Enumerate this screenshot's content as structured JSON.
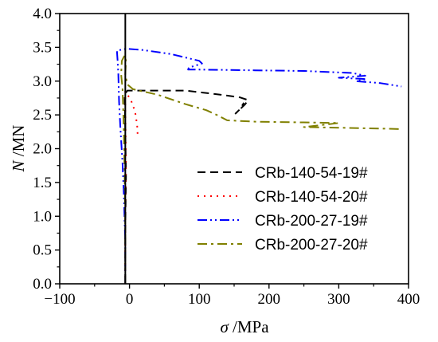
{
  "chart_data": {
    "type": "line",
    "title": "",
    "xlabel_symbol": "σ",
    "xlabel_unit": " /MPa",
    "ylabel_symbol": "N",
    "ylabel_unit": " /MN",
    "xlim": [
      -100,
      400
    ],
    "ylim": [
      0,
      4
    ],
    "x_ticks": [
      -100,
      0,
      100,
      200,
      300,
      400
    ],
    "x_tick_labels": [
      "−100",
      "0",
      "100",
      "200",
      "300",
      "400"
    ],
    "y_ticks": [
      0,
      0.5,
      1.0,
      1.5,
      2.0,
      2.5,
      3.0,
      3.5,
      4.0
    ],
    "y_tick_labels": [
      "0.0",
      "0.5",
      "1.0",
      "1.5",
      "2.0",
      "2.5",
      "3.0",
      "3.5",
      "4.0"
    ],
    "grid": false,
    "legend_position": "bottom-right",
    "zero_line_x": -6,
    "series": [
      {
        "name": "CRb-140-54-19#",
        "color": "#000000",
        "dash": "10,6",
        "points": [
          [
            -6,
            0
          ],
          [
            -6,
            0.8
          ],
          [
            -5,
            1.6
          ],
          [
            -6,
            2.3
          ],
          [
            -7,
            2.8
          ],
          [
            -3,
            2.86
          ],
          [
            30,
            2.86
          ],
          [
            80,
            2.86
          ],
          [
            130,
            2.8
          ],
          [
            158,
            2.76
          ],
          [
            170,
            2.72
          ],
          [
            166,
            2.66
          ],
          [
            160,
            2.6
          ],
          [
            152,
            2.52
          ],
          [
            158,
            2.58
          ],
          [
            164,
            2.68
          ]
        ]
      },
      {
        "name": "CRb-140-54-20#",
        "color": "#ff0000",
        "dash": "2,6",
        "points": [
          [
            -6,
            0
          ],
          [
            -6,
            1.0
          ],
          [
            -5,
            1.8
          ],
          [
            -6,
            2.6
          ],
          [
            -6,
            2.85
          ],
          [
            2,
            2.72
          ],
          [
            8,
            2.55
          ],
          [
            11,
            2.35
          ],
          [
            12,
            2.15
          ]
        ]
      },
      {
        "name": "CRb-200-27-19#",
        "color": "#0000ff",
        "dash": "12,4,2,4,2,4",
        "points": [
          [
            -6,
            0
          ],
          [
            -6,
            0.6
          ],
          [
            -8,
            1.3
          ],
          [
            -10,
            1.8
          ],
          [
            -13,
            2.3
          ],
          [
            -15,
            2.7
          ],
          [
            -16,
            3.1
          ],
          [
            -17,
            3.3
          ],
          [
            -18,
            3.45
          ],
          [
            -5,
            3.48
          ],
          [
            20,
            3.46
          ],
          [
            60,
            3.4
          ],
          [
            100,
            3.3
          ],
          [
            104,
            3.26
          ],
          [
            85,
            3.2
          ],
          [
            84,
            3.17
          ],
          [
            100,
            3.17
          ],
          [
            180,
            3.16
          ],
          [
            250,
            3.15
          ],
          [
            320,
            3.12
          ],
          [
            338,
            3.08
          ],
          [
            300,
            3.05
          ],
          [
            340,
            3.03
          ],
          [
            325,
            3.0
          ],
          [
            360,
            2.97
          ],
          [
            390,
            2.92
          ]
        ]
      },
      {
        "name": "CRb-200-27-20#",
        "color": "#808000",
        "dash": "12,5,3,5",
        "points": [
          [
            -6,
            0
          ],
          [
            -6,
            0.8
          ],
          [
            -7,
            1.6
          ],
          [
            -8,
            2.2
          ],
          [
            -9,
            2.6
          ],
          [
            -10,
            2.9
          ],
          [
            -12,
            3.1
          ],
          [
            -11,
            3.3
          ],
          [
            -7,
            3.38
          ],
          [
            -5,
            3.3
          ],
          [
            -6,
            3.1
          ],
          [
            -3,
            2.95
          ],
          [
            5,
            2.88
          ],
          [
            40,
            2.8
          ],
          [
            80,
            2.66
          ],
          [
            110,
            2.57
          ],
          [
            125,
            2.5
          ],
          [
            140,
            2.42
          ],
          [
            180,
            2.4
          ],
          [
            240,
            2.39
          ],
          [
            300,
            2.38
          ],
          [
            250,
            2.32
          ],
          [
            300,
            2.31
          ],
          [
            350,
            2.3
          ],
          [
            390,
            2.29
          ]
        ]
      }
    ]
  }
}
